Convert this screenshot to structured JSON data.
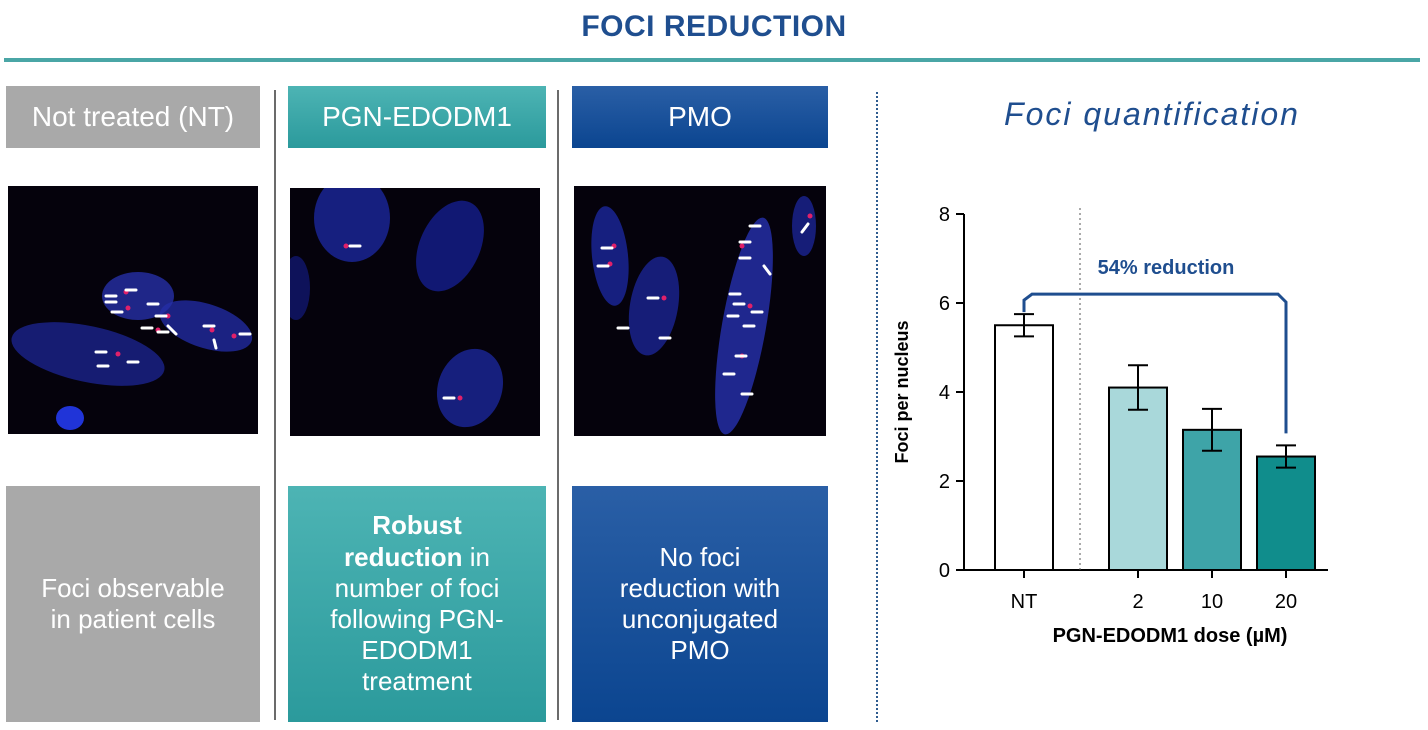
{
  "page_title": "FOCI REDUCTION",
  "columns": [
    {
      "header": "Not treated (NT)",
      "panel_lines": [
        [
          {
            "t": "Foci observable",
            "b": false
          }
        ],
        [
          {
            "t": "in patient cells",
            "b": false
          }
        ]
      ]
    },
    {
      "header": "PGN-EDODM1",
      "panel_lines": [
        [
          {
            "t": "Robust",
            "b": true
          }
        ],
        [
          {
            "t": "reduction",
            "b": true
          },
          {
            "t": " in",
            "b": false
          }
        ],
        [
          {
            "t": "number of foci",
            "b": false
          }
        ],
        [
          {
            "t": "following PGN-",
            "b": false
          }
        ],
        [
          {
            "t": "EDODM1",
            "b": false
          }
        ],
        [
          {
            "t": "treatment",
            "b": false
          }
        ]
      ]
    },
    {
      "header": "PMO",
      "panel_lines": [
        [
          {
            "t": "No foci",
            "b": false
          }
        ],
        [
          {
            "t": "reduction with",
            "b": false
          }
        ],
        [
          {
            "t": "unconjugated",
            "b": false
          }
        ],
        [
          {
            "t": "PMO",
            "b": false
          }
        ]
      ]
    }
  ],
  "chart_title": "Foci quantification",
  "chart_data": {
    "type": "bar",
    "categories": [
      "NT",
      "2",
      "10",
      "20"
    ],
    "values": [
      5.5,
      4.1,
      3.15,
      2.55
    ],
    "errors": [
      0.25,
      0.5,
      0.47,
      0.25
    ],
    "colors": [
      "#ffffff",
      "#a9d8da",
      "#3ea4a8",
      "#108d8c"
    ],
    "ylabel": "Foci per nucleus",
    "xlabel": "PGN-EDODM1 dose (µM)",
    "ylim": [
      0,
      8
    ],
    "yticks": [
      0,
      2,
      4,
      6,
      8
    ],
    "annotation": "54% reduction",
    "accent": "#1f4e8f"
  }
}
